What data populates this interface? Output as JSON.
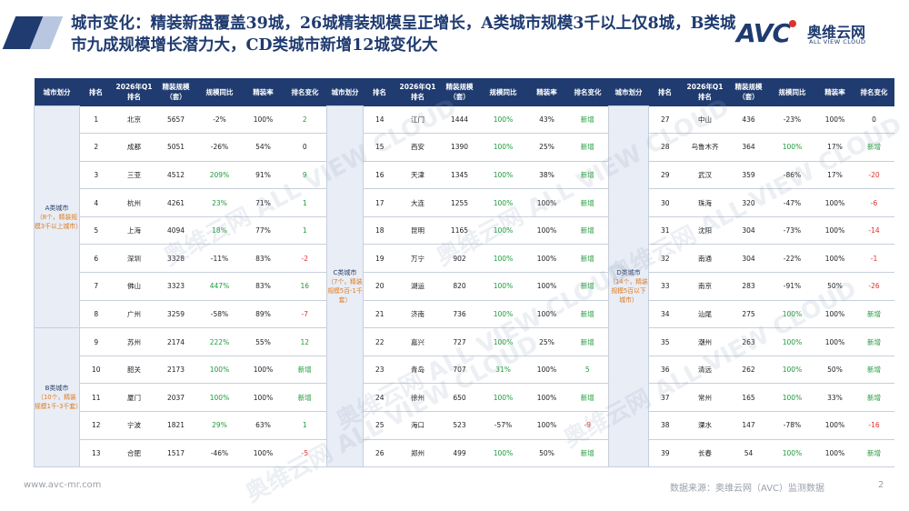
{
  "title": "城市变化：精装新盘覆盖39城，26城精装规模呈正增长，A类城市规模3千以上仅8城，B类城市九成规模增长潜力大，CD类城市新增12城变化大",
  "logo": {
    "avc": "AVC",
    "cn": "奥维云网",
    "en": "ALL VIEW CLOUD"
  },
  "headers": [
    "城市划分",
    "排名",
    "2026年Q1\n排名",
    "精装规模\n（套）",
    "规模同比",
    "精装率",
    "排名变化"
  ],
  "groups": {
    "A": {
      "name": "A类城市",
      "note": "（8个，精装规模3千以上城市）"
    },
    "B": {
      "name": "B类城市",
      "note": "（10个，精装规模1千-3千套）"
    },
    "C": {
      "name": "C类城市",
      "note": "（7个，精装规模5百-1千套）"
    },
    "D": {
      "name": "D类城市",
      "note": "（14个，精装规模5百以下城市）"
    }
  },
  "left": [
    [
      "1",
      "北京",
      "5657",
      "-2%",
      "100%",
      "2"
    ],
    [
      "2",
      "成都",
      "5051",
      "-26%",
      "54%",
      "0"
    ],
    [
      "3",
      "三亚",
      "4512",
      "209%",
      "91%",
      "9"
    ],
    [
      "4",
      "杭州",
      "4261",
      "23%",
      "71%",
      "1"
    ],
    [
      "5",
      "上海",
      "4094",
      "18%",
      "77%",
      "1"
    ],
    [
      "6",
      "深圳",
      "3328",
      "-11%",
      "83%",
      "-2"
    ],
    [
      "7",
      "佛山",
      "3323",
      "447%",
      "83%",
      "16"
    ],
    [
      "8",
      "广州",
      "3259",
      "-58%",
      "89%",
      "-7"
    ],
    [
      "9",
      "苏州",
      "2174",
      "222%",
      "55%",
      "12"
    ],
    [
      "10",
      "韶关",
      "2173",
      "100%",
      "100%",
      "新增"
    ],
    [
      "11",
      "厦门",
      "2037",
      "100%",
      "100%",
      "新增"
    ],
    [
      "12",
      "宁波",
      "1821",
      "29%",
      "63%",
      "1"
    ],
    [
      "13",
      "合肥",
      "1517",
      "-46%",
      "100%",
      "-5"
    ]
  ],
  "middle": [
    [
      "14",
      "江门",
      "1444",
      "100%",
      "43%",
      "新增"
    ],
    [
      "15",
      "西安",
      "1390",
      "100%",
      "25%",
      "新增"
    ],
    [
      "16",
      "天津",
      "1345",
      "100%",
      "38%",
      "新增"
    ],
    [
      "17",
      "大连",
      "1255",
      "100%",
      "100%",
      "新增"
    ],
    [
      "18",
      "昆明",
      "1165",
      "100%",
      "100%",
      "新增"
    ],
    [
      "19",
      "万宁",
      "902",
      "100%",
      "100%",
      "新增"
    ],
    [
      "20",
      "湖运",
      "820",
      "100%",
      "100%",
      "新增"
    ],
    [
      "21",
      "济南",
      "736",
      "100%",
      "100%",
      "新增"
    ],
    [
      "22",
      "嘉兴",
      "727",
      "100%",
      "25%",
      "新增"
    ],
    [
      "23",
      "青岛",
      "707",
      "31%",
      "100%",
      "5"
    ],
    [
      "24",
      "徐州",
      "650",
      "100%",
      "100%",
      "新增"
    ],
    [
      "25",
      "海口",
      "523",
      "-57%",
      "100%",
      "-9"
    ],
    [
      "26",
      "郑州",
      "499",
      "100%",
      "50%",
      "新增"
    ]
  ],
  "right": [
    [
      "27",
      "中山",
      "436",
      "-23%",
      "100%",
      "0"
    ],
    [
      "28",
      "乌鲁木齐",
      "364",
      "100%",
      "17%",
      "新增"
    ],
    [
      "29",
      "武汉",
      "359",
      "-86%",
      "17%",
      "-20"
    ],
    [
      "30",
      "珠海",
      "320",
      "-47%",
      "100%",
      "-6"
    ],
    [
      "31",
      "沈阳",
      "304",
      "-73%",
      "100%",
      "-14"
    ],
    [
      "32",
      "南通",
      "304",
      "-22%",
      "100%",
      "-1"
    ],
    [
      "33",
      "南京",
      "283",
      "-91%",
      "50%",
      "-26"
    ],
    [
      "34",
      "汕尾",
      "275",
      "100%",
      "100%",
      "新增"
    ],
    [
      "35",
      "潮州",
      "263",
      "100%",
      "100%",
      "新增"
    ],
    [
      "36",
      "清远",
      "262",
      "100%",
      "50%",
      "新增"
    ],
    [
      "37",
      "常州",
      "165",
      "100%",
      "33%",
      "新增"
    ],
    [
      "38",
      "溧水",
      "147",
      "-78%",
      "100%",
      "-16"
    ],
    [
      "39",
      "长春",
      "54",
      "100%",
      "100%",
      "新增"
    ]
  ],
  "footer": {
    "left": "www.avc-mr.com",
    "right": "数据来源：奥维云网（AVC）监测数据",
    "page": "2"
  },
  "watermark": "奥维云网 ALL VIEW CLOUD",
  "colors": {
    "navy": "#1f3b70",
    "green": "#1e9a3a",
    "red": "#e0312b",
    "orange": "#e07b1e"
  }
}
